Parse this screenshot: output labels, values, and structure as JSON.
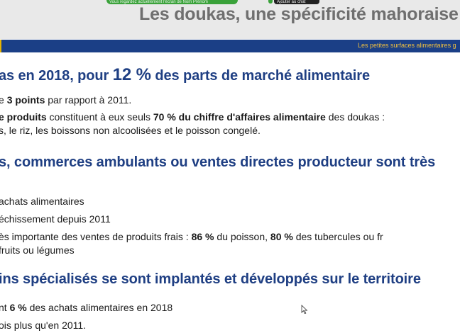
{
  "header": {
    "title": "Les doukas, une spécificité mahoraise",
    "strip_text": "Vous regardez actuellement l'écran de Nom Prénom",
    "chip_text": "Ajouter au chat",
    "band_text": "Les petites surfaces alimentaires g"
  },
  "sections": [
    {
      "heading_pre": "as en 2018, pour ",
      "heading_pct": "12 %",
      "heading_post": " des parts de marché alimentaire",
      "lines": [
        {
          "t1": "e ",
          "b1": "3 points",
          "t2": " par rapport à 2011."
        },
        {
          "b1": "e produits",
          "t1": " constituent à eux seuls ",
          "b2": "70 % du chiffre d'affaires alimentaire",
          "t2": " des doukas :"
        },
        {
          "t1": "s, le riz, les boissons non alcoolisées et le poisson congelé."
        }
      ]
    },
    {
      "heading": "s, commerces ambulants ou ventes directes producteur sont très",
      "lines": [
        {
          "t1": "achats alimentaires"
        },
        {
          "t1": "échissement depuis 2011"
        },
        {
          "t1": "ès importante des ventes de produits frais : ",
          "b1": "86 %",
          "t2": " du poisson, ",
          "b2": "80 %",
          "t3": " des tubercules ou fr"
        },
        {
          "t1": "fruits ou légumes"
        }
      ]
    },
    {
      "heading": "ins spécialisés se sont implantés et développés sur le territoire",
      "lines": [
        {
          "t1": "nt ",
          "b1": "6 %",
          "t2": " des achats alimentaires en 2018"
        },
        {
          "t1": "ois plus qu'en 2011."
        }
      ]
    }
  ],
  "colors": {
    "band": "#1b3f86",
    "heading": "#1f3f83",
    "title": "#6f6f6f",
    "band_text": "#f0c040"
  },
  "icons": {
    "cursor": "mouse-pointer-icon"
  }
}
